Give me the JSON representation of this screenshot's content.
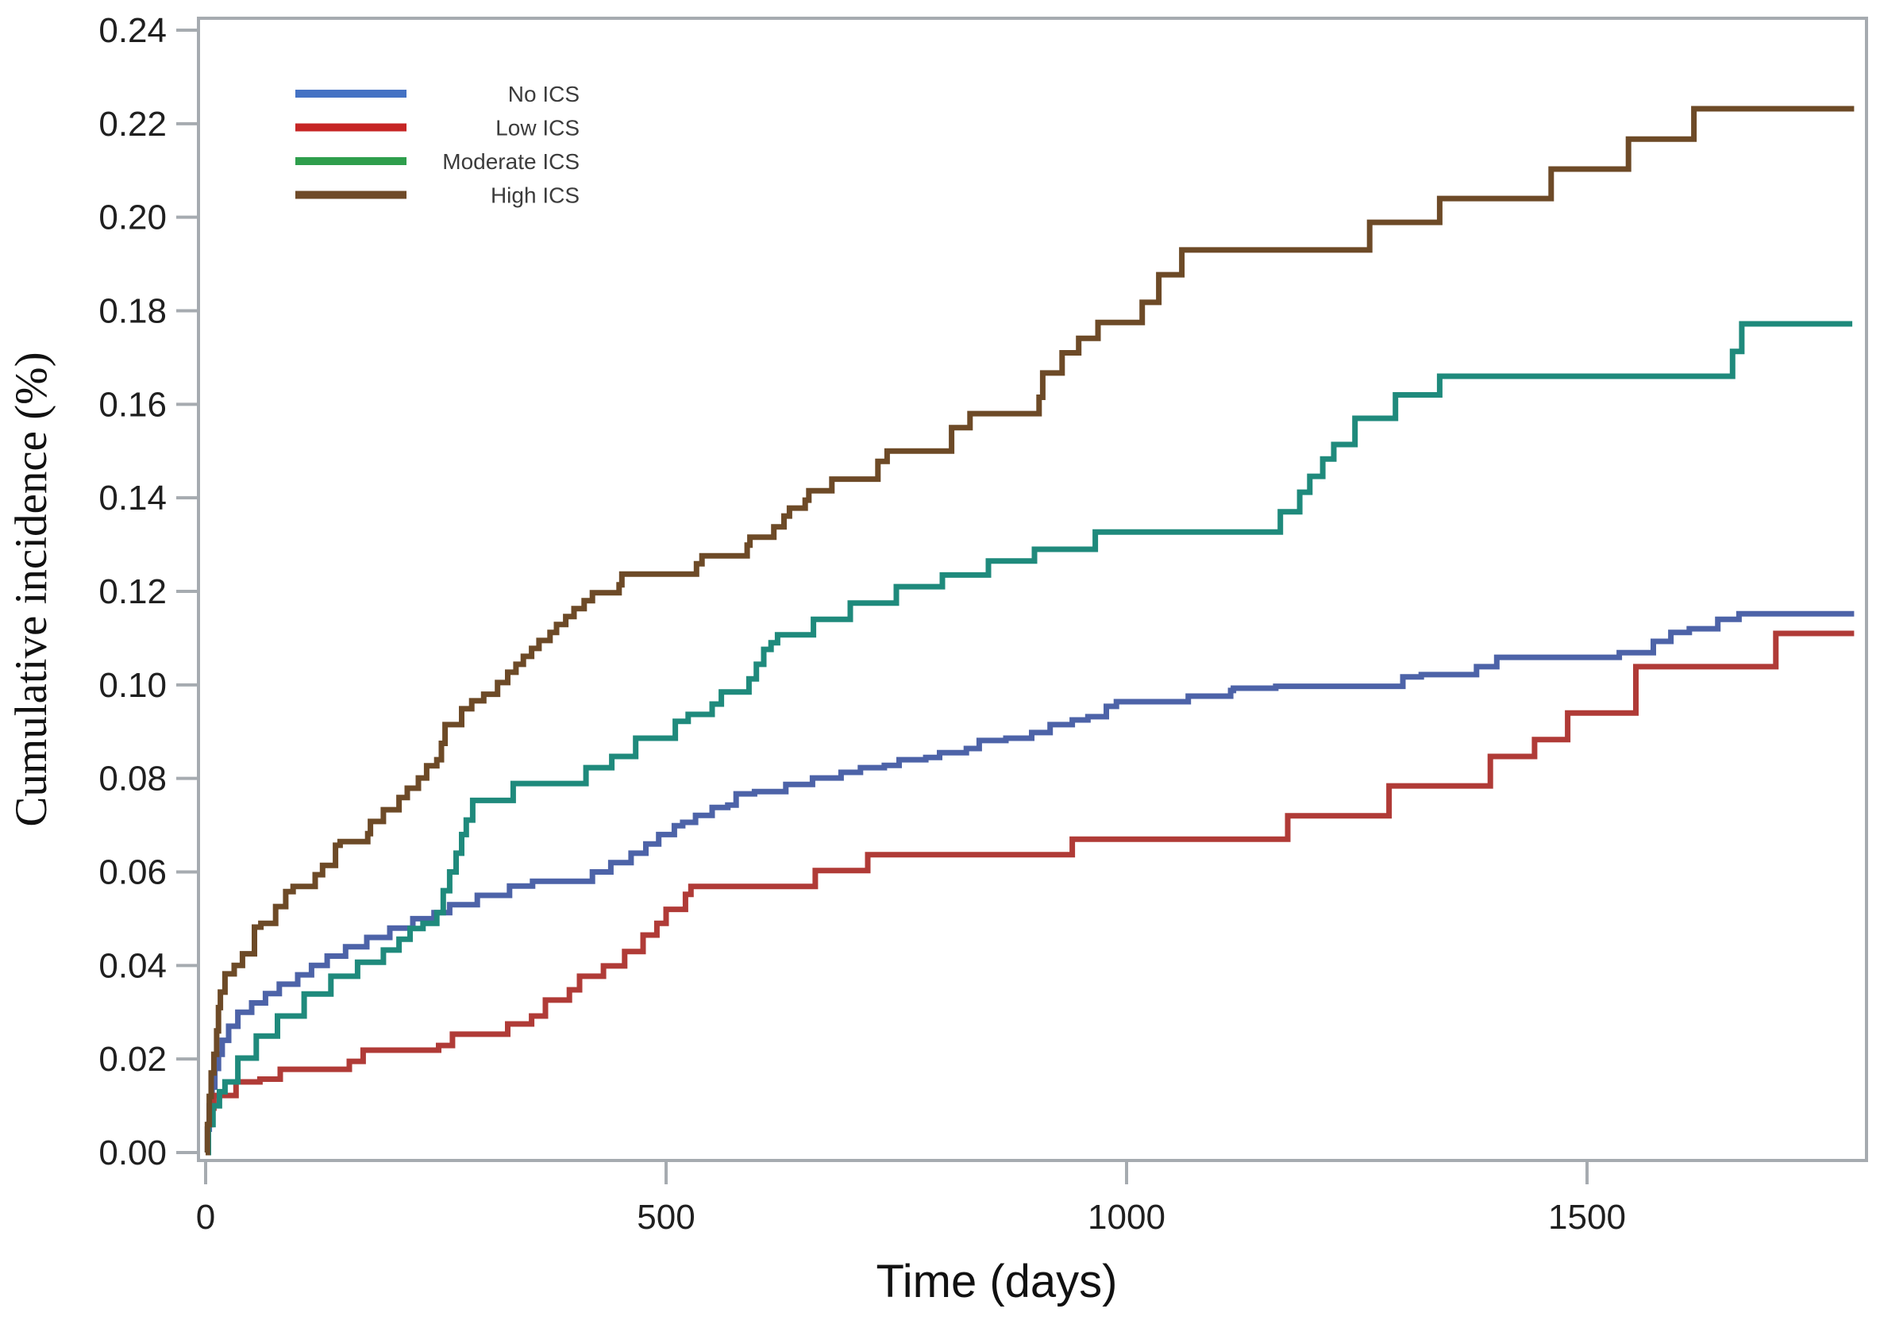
{
  "figure": {
    "background": "#ffffff",
    "frame_color": "#a6abb0",
    "text_color": "#1f1f1f"
  },
  "chart_data": {
    "type": "line",
    "subtype": "step-after cumulative incidence (Kaplan-Meier style)",
    "title": "",
    "xlabel": "Time (days)",
    "ylabel": "Cumulative incidence (%)",
    "xlim": [
      0,
      1850
    ],
    "ylim": [
      0,
      0.24
    ],
    "grid": false,
    "legend_position": "top-left-inside",
    "xticks": [
      0,
      500,
      1000,
      1500
    ],
    "xtick_labels": [
      "0",
      "500",
      "1000",
      "1500"
    ],
    "yticks": [
      0.0,
      0.02,
      0.04,
      0.06,
      0.08,
      0.1,
      0.12,
      0.14,
      0.16,
      0.18,
      0.2,
      0.22,
      0.24
    ],
    "ytick_labels": [
      "0.00",
      "0.02",
      "0.04",
      "0.06",
      "0.08",
      "0.10",
      "0.12",
      "0.14",
      "0.16",
      "0.18",
      "0.20",
      "0.22",
      "0.24"
    ],
    "series": [
      {
        "name": "No ICS",
        "legend_color": "#4472c4",
        "line_color": "#4d63a8",
        "points": [
          [
            0,
            0
          ],
          [
            2,
            0.005
          ],
          [
            4,
            0.01
          ],
          [
            7,
            0.014
          ],
          [
            10,
            0.018
          ],
          [
            14,
            0.021
          ],
          [
            18,
            0.024
          ],
          [
            25,
            0.027
          ],
          [
            35,
            0.03
          ],
          [
            50,
            0.032
          ],
          [
            65,
            0.034
          ],
          [
            80,
            0.036
          ],
          [
            100,
            0.038
          ],
          [
            115,
            0.04
          ],
          [
            132,
            0.042
          ],
          [
            152,
            0.044
          ],
          [
            175,
            0.046
          ],
          [
            200,
            0.048
          ],
          [
            225,
            0.05
          ],
          [
            248,
            0.0513
          ],
          [
            265,
            0.053
          ],
          [
            295,
            0.055
          ],
          [
            330,
            0.057
          ],
          [
            355,
            0.058
          ],
          [
            420,
            0.06
          ],
          [
            440,
            0.062
          ],
          [
            462,
            0.064
          ],
          [
            478,
            0.066
          ],
          [
            492,
            0.068
          ],
          [
            509,
            0.0699
          ],
          [
            518,
            0.0706
          ],
          [
            532,
            0.0721
          ],
          [
            550,
            0.0738
          ],
          [
            567,
            0.0743
          ],
          [
            576,
            0.0767
          ],
          [
            596,
            0.0772
          ],
          [
            630,
            0.0787
          ],
          [
            659,
            0.0801
          ],
          [
            690,
            0.0813
          ],
          [
            711,
            0.0823
          ],
          [
            737,
            0.0828
          ],
          [
            753,
            0.084
          ],
          [
            782,
            0.0845
          ],
          [
            797,
            0.0855
          ],
          [
            826,
            0.0864
          ],
          [
            840,
            0.0881
          ],
          [
            869,
            0.0886
          ],
          [
            897,
            0.0898
          ],
          [
            917,
            0.0915
          ],
          [
            941,
            0.0925
          ],
          [
            958,
            0.0932
          ],
          [
            978,
            0.0954
          ],
          [
            989,
            0.0964
          ],
          [
            1067,
            0.0976
          ],
          [
            1113,
            0.0988
          ],
          [
            1116,
            0.0993
          ],
          [
            1162,
            0.0997
          ],
          [
            1300,
            0.1017
          ],
          [
            1320,
            0.1022
          ],
          [
            1380,
            0.1039
          ],
          [
            1402,
            0.1059
          ],
          [
            1535,
            0.1069
          ],
          [
            1572,
            0.1093
          ],
          [
            1591,
            0.1112
          ],
          [
            1611,
            0.112
          ],
          [
            1642,
            0.114
          ],
          [
            1665,
            0.1152
          ],
          [
            1790,
            0.1152
          ]
        ]
      },
      {
        "name": "Low ICS",
        "legend_color": "#c62625",
        "line_color": "#b03b37",
        "points": [
          [
            0,
            0
          ],
          [
            3,
            0.006
          ],
          [
            6,
            0.0095
          ],
          [
            9,
            0.0122
          ],
          [
            33,
            0.0151
          ],
          [
            59,
            0.0157
          ],
          [
            81,
            0.0178
          ],
          [
            156,
            0.0195
          ],
          [
            171,
            0.0219
          ],
          [
            253,
            0.0229
          ],
          [
            268,
            0.0253
          ],
          [
            328,
            0.0275
          ],
          [
            354,
            0.0292
          ],
          [
            369,
            0.0326
          ],
          [
            395,
            0.0348
          ],
          [
            406,
            0.0377
          ],
          [
            432,
            0.0399
          ],
          [
            455,
            0.043
          ],
          [
            475,
            0.0465
          ],
          [
            490,
            0.049
          ],
          [
            500,
            0.052
          ],
          [
            521,
            0.0552
          ],
          [
            527,
            0.0569
          ],
          [
            662,
            0.0603
          ],
          [
            719,
            0.0637
          ],
          [
            941,
            0.067
          ],
          [
            1175,
            0.072
          ],
          [
            1285,
            0.0784
          ],
          [
            1395,
            0.0847
          ],
          [
            1443,
            0.0883
          ],
          [
            1479,
            0.094
          ],
          [
            1553,
            0.1039
          ],
          [
            1705,
            0.111
          ],
          [
            1790,
            0.111
          ]
        ]
      },
      {
        "name": "Moderate ICS",
        "legend_color": "#2e9e4c",
        "line_color": "#1f8a7c",
        "points": [
          [
            0,
            0
          ],
          [
            3,
            0.006
          ],
          [
            8,
            0.01
          ],
          [
            15,
            0.013
          ],
          [
            21,
            0.0151
          ],
          [
            35,
            0.0202
          ],
          [
            55,
            0.0249
          ],
          [
            78,
            0.0292
          ],
          [
            107,
            0.0339
          ],
          [
            136,
            0.0377
          ],
          [
            165,
            0.0407
          ],
          [
            193,
            0.0433
          ],
          [
            210,
            0.0456
          ],
          [
            222,
            0.0479
          ],
          [
            236,
            0.049
          ],
          [
            251,
            0.0513
          ],
          [
            258,
            0.056
          ],
          [
            265,
            0.06
          ],
          [
            272,
            0.064
          ],
          [
            278,
            0.068
          ],
          [
            283,
            0.0711
          ],
          [
            290,
            0.0753
          ],
          [
            334,
            0.0789
          ],
          [
            413,
            0.0823
          ],
          [
            441,
            0.0847
          ],
          [
            467,
            0.0886
          ],
          [
            510,
            0.0922
          ],
          [
            524,
            0.0937
          ],
          [
            550,
            0.0959
          ],
          [
            560,
            0.0985
          ],
          [
            590,
            0.1013
          ],
          [
            598,
            0.1044
          ],
          [
            606,
            0.1076
          ],
          [
            614,
            0.109
          ],
          [
            621,
            0.1107
          ],
          [
            660,
            0.114
          ],
          [
            700,
            0.1175
          ],
          [
            750,
            0.121
          ],
          [
            800,
            0.1235
          ],
          [
            850,
            0.1265
          ],
          [
            900,
            0.129
          ],
          [
            966,
            0.1327
          ],
          [
            1167,
            0.137
          ],
          [
            1188,
            0.1412
          ],
          [
            1199,
            0.1446
          ],
          [
            1213,
            0.1483
          ],
          [
            1225,
            0.1514
          ],
          [
            1248,
            0.157
          ],
          [
            1292,
            0.162
          ],
          [
            1340,
            0.166
          ],
          [
            1658,
            0.1713
          ],
          [
            1668,
            0.1772
          ],
          [
            1788,
            0.1772
          ]
        ]
      },
      {
        "name": "High ICS",
        "legend_color": "#6f4a28",
        "line_color": "#6d4a27",
        "points": [
          [
            0,
            0
          ],
          [
            2,
            0.006
          ],
          [
            4,
            0.012
          ],
          [
            6,
            0.017
          ],
          [
            9,
            0.021
          ],
          [
            12,
            0.026
          ],
          [
            14,
            0.031
          ],
          [
            16,
            0.0343
          ],
          [
            21,
            0.0382
          ],
          [
            31,
            0.04
          ],
          [
            40,
            0.0425
          ],
          [
            53,
            0.0482
          ],
          [
            60,
            0.049
          ],
          [
            76,
            0.0526
          ],
          [
            87,
            0.0558
          ],
          [
            95,
            0.0569
          ],
          [
            119,
            0.0594
          ],
          [
            127,
            0.0614
          ],
          [
            141,
            0.0657
          ],
          [
            146,
            0.0665
          ],
          [
            176,
            0.0682
          ],
          [
            179,
            0.0708
          ],
          [
            193,
            0.0733
          ],
          [
            210,
            0.0759
          ],
          [
            219,
            0.0779
          ],
          [
            231,
            0.0801
          ],
          [
            240,
            0.0827
          ],
          [
            251,
            0.084
          ],
          [
            256,
            0.0875
          ],
          [
            260,
            0.0915
          ],
          [
            278,
            0.0949
          ],
          [
            289,
            0.0966
          ],
          [
            302,
            0.098
          ],
          [
            317,
            0.1005
          ],
          [
            328,
            0.1027
          ],
          [
            337,
            0.1044
          ],
          [
            345,
            0.1061
          ],
          [
            354,
            0.1078
          ],
          [
            362,
            0.1095
          ],
          [
            374,
            0.1112
          ],
          [
            381,
            0.1129
          ],
          [
            391,
            0.1146
          ],
          [
            400,
            0.1163
          ],
          [
            411,
            0.118
          ],
          [
            420,
            0.1197
          ],
          [
            449,
            0.1214
          ],
          [
            452,
            0.1237
          ],
          [
            533,
            0.1259
          ],
          [
            539,
            0.1276
          ],
          [
            588,
            0.1299
          ],
          [
            591,
            0.1316
          ],
          [
            617,
            0.1338
          ],
          [
            628,
            0.1361
          ],
          [
            634,
            0.1378
          ],
          [
            651,
            0.1395
          ],
          [
            655,
            0.1415
          ],
          [
            680,
            0.144
          ],
          [
            730,
            0.1478
          ],
          [
            740,
            0.15
          ],
          [
            810,
            0.155
          ],
          [
            830,
            0.158
          ],
          [
            905,
            0.1615
          ],
          [
            909,
            0.1667
          ],
          [
            930,
            0.171
          ],
          [
            948,
            0.1741
          ],
          [
            969,
            0.1775
          ],
          [
            1017,
            0.1818
          ],
          [
            1035,
            0.1877
          ],
          [
            1060,
            0.193
          ],
          [
            1264,
            0.1989
          ],
          [
            1340,
            0.204
          ],
          [
            1461,
            0.2103
          ],
          [
            1545,
            0.2167
          ],
          [
            1616,
            0.2232
          ],
          [
            1790,
            0.2232
          ]
        ]
      }
    ]
  }
}
